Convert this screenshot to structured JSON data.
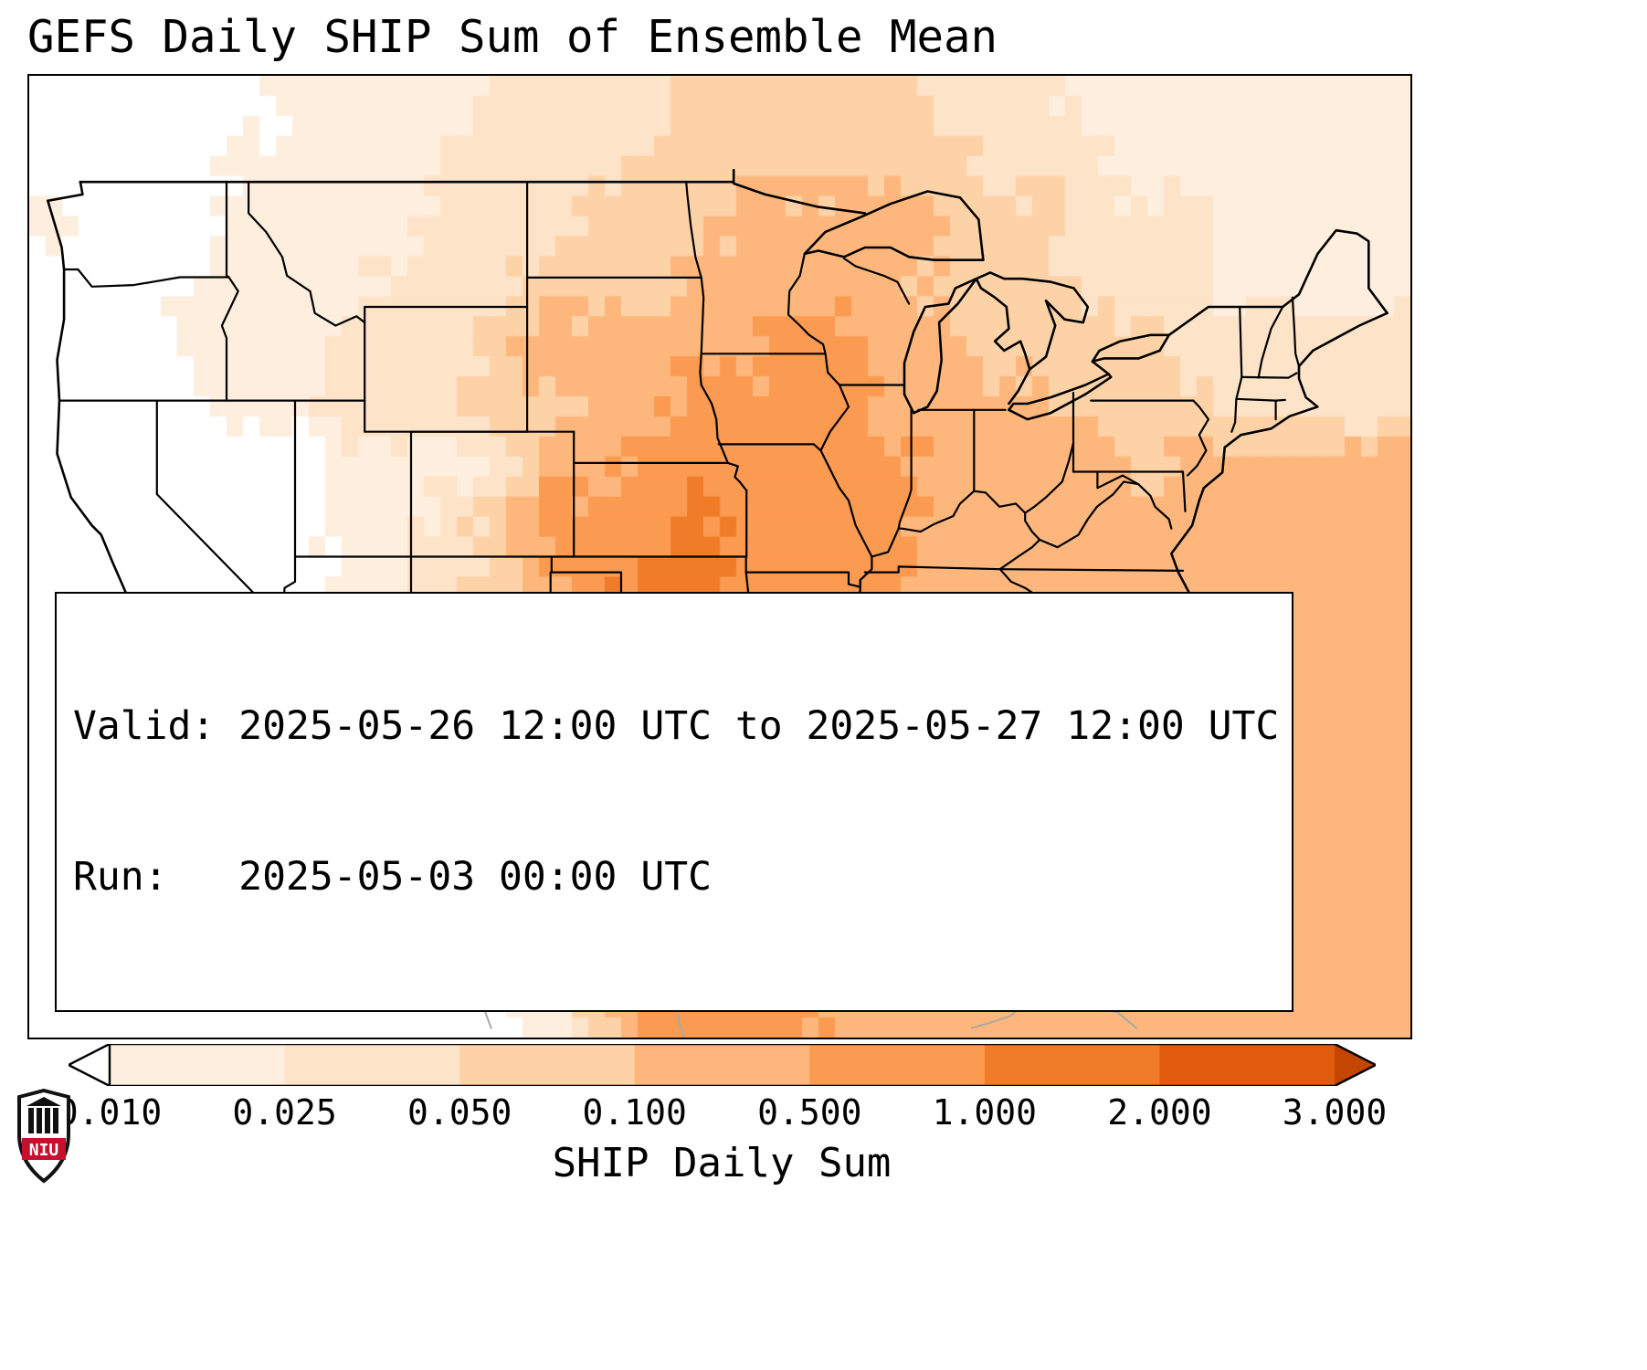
{
  "title": "GEFS Daily SHIP Sum of Ensemble Mean",
  "info_box": {
    "valid_line": "Valid: 2025-05-26 12:00 UTC to 2025-05-27 12:00 UTC",
    "run_line": "Run:   2025-05-03 00:00 UTC"
  },
  "colorbar": {
    "label": "SHIP Daily Sum",
    "tick_labels": [
      "0.010",
      "0.025",
      "0.050",
      "0.100",
      "0.500",
      "1.000",
      "2.000",
      "3.000"
    ],
    "segment_colors": [
      "#feeedd",
      "#fde3c8",
      "#fdd2a7",
      "#fdb77c",
      "#fb9a51",
      "#f07c27",
      "#e05c0c"
    ],
    "under_arrow_color": "#ffffff",
    "over_arrow_color": "#c44601",
    "outline_color": "#000000"
  },
  "logo": {
    "text": "NIU",
    "red": "#c8102e",
    "dark": "#111111"
  },
  "chart_data": {
    "type": "heatmap",
    "title": "GEFS Daily SHIP Sum of Ensemble Mean",
    "units_label": "SHIP Daily Sum",
    "valid": "2025-05-26 12:00 UTC to 2025-05-27 12:00 UTC",
    "run": "2025-05-03 00:00 UTC",
    "levels": [
      0.01,
      0.025,
      0.05,
      0.1,
      0.5,
      1.0,
      2.0,
      3.0
    ],
    "colors": [
      "#ffffff",
      "#feeedd",
      "#fde3c8",
      "#fdd2a7",
      "#fdb77c",
      "#fb9a51",
      "#f07c27",
      "#e05c0c",
      "#c44601"
    ],
    "lon_extent": [
      -125.5,
      -66.0
    ],
    "lat_extent": [
      21.6,
      52.4
    ],
    "grid_note": "values are approximate SHIP daily-sum ensemble means on a coarse lon/lat grid, rows north-to-south",
    "values": [
      [
        0,
        0,
        0,
        0,
        0,
        0.02,
        0.02,
        0.02,
        0.02,
        0.04,
        0.04,
        0.04,
        0.04,
        0.08,
        0.08,
        0.08,
        0.08,
        0.08,
        0.04,
        0.04,
        0.04,
        0.02,
        0.02,
        0.02,
        0.02,
        0.02,
        0.02,
        0.02
      ],
      [
        0,
        0,
        0,
        0,
        0.02,
        0.02,
        0.02,
        0.02,
        0.04,
        0.04,
        0.04,
        0.04,
        0.08,
        0.08,
        0.08,
        0.08,
        0.08,
        0.08,
        0.08,
        0.04,
        0.04,
        0.04,
        0.02,
        0.02,
        0.02,
        0.02,
        0.02,
        0.02
      ],
      [
        0.02,
        0,
        0,
        0,
        0.02,
        0.02,
        0.02,
        0.02,
        0.04,
        0.04,
        0.04,
        0.08,
        0.08,
        0.08,
        0.3,
        0.3,
        0.3,
        0.3,
        0.3,
        0.08,
        0.08,
        0.04,
        0.04,
        0.04,
        0.02,
        0.02,
        0.02,
        0.02
      ],
      [
        0,
        0,
        0,
        0.02,
        0.02,
        0.02,
        0.02,
        0.04,
        0.04,
        0.04,
        0.08,
        0.08,
        0.08,
        0.3,
        0.3,
        0.3,
        0.3,
        0.3,
        0.08,
        0.08,
        0.08,
        0.04,
        0.04,
        0.04,
        0.02,
        0.02,
        0.02,
        0.02
      ],
      [
        0,
        0,
        0,
        0.02,
        0.02,
        0.02,
        0.04,
        0.04,
        0.04,
        0.08,
        0.3,
        0.3,
        0.3,
        0.3,
        0.3,
        0.7,
        0.7,
        0.3,
        0.3,
        0.08,
        0.08,
        0.08,
        0.08,
        0.04,
        0.04,
        0.04,
        0.04,
        0.04
      ],
      [
        0,
        0,
        0,
        0,
        0.02,
        0.02,
        0.04,
        0.04,
        0.04,
        0.08,
        0.08,
        0.3,
        0.3,
        0.7,
        0.7,
        0.7,
        0.7,
        0.3,
        0.3,
        0.3,
        0.3,
        0.08,
        0.08,
        0.08,
        0.04,
        0.04,
        0.04,
        0.04
      ],
      [
        0,
        0,
        0,
        0,
        0,
        0,
        0.02,
        0.02,
        0.02,
        0.04,
        0.3,
        0.3,
        0.7,
        0.7,
        0.7,
        0.7,
        0.7,
        0.7,
        0.3,
        0.3,
        0.3,
        0.3,
        0.08,
        0.3,
        0.3,
        0.3,
        0.3,
        0.3
      ],
      [
        0,
        0,
        0,
        0,
        0,
        0,
        0.02,
        0.02,
        0.04,
        0.08,
        0.7,
        0.7,
        0.7,
        1.5,
        0.7,
        0.7,
        0.7,
        0.7,
        0.3,
        0.3,
        0.3,
        0.3,
        0.3,
        0.3,
        0.3,
        0.3,
        0.3,
        0.3
      ],
      [
        0,
        0,
        0,
        0,
        0,
        0,
        0.02,
        0.02,
        0.04,
        0.08,
        0.3,
        0.7,
        1.5,
        1.5,
        0.7,
        0.7,
        0.7,
        0.7,
        0.3,
        0.3,
        0.3,
        0.3,
        0.3,
        0.3,
        0.3,
        0.3,
        0.3,
        0.3
      ],
      [
        0,
        0,
        0,
        0,
        0,
        0.02,
        0.02,
        0.02,
        0.04,
        0.08,
        0.3,
        1.5,
        2.5,
        1.5,
        0.7,
        0.7,
        0.7,
        0.7,
        0.3,
        0.3,
        0.3,
        0.3,
        0.3,
        0.3,
        0.3,
        0.3,
        0.3,
        0.3
      ],
      [
        0,
        0,
        0,
        0,
        0,
        0,
        0.02,
        0.02,
        0.02,
        0.04,
        0.08,
        0.7,
        1.5,
        0.7,
        0.7,
        0.3,
        0.3,
        0.3,
        0.3,
        0.3,
        0.3,
        0.3,
        0.3,
        0.3,
        0.3,
        0.3,
        0.3,
        0.3
      ],
      [
        0,
        0,
        0,
        0,
        0,
        0,
        0,
        0.02,
        0.02,
        0.04,
        0.08,
        0.3,
        1.5,
        1.5,
        0.7,
        0.3,
        0.3,
        0.3,
        0.3,
        0.08,
        0.3,
        0.3,
        0.3,
        0.3,
        0.3,
        0.3,
        0.3,
        0.3
      ],
      [
        0,
        0,
        0,
        0,
        0,
        0,
        0,
        0,
        0.02,
        0.02,
        0.04,
        0.3,
        1.5,
        0.7,
        0.7,
        0.3,
        0.3,
        0.3,
        0.3,
        0.08,
        0.3,
        0.3,
        0.3,
        0.3,
        0.3,
        0.3,
        0.3,
        0.3
      ],
      [
        0,
        0,
        0,
        0.02,
        0,
        0,
        0,
        0,
        0,
        0.02,
        0.04,
        0.3,
        0.7,
        0.7,
        0.3,
        0.3,
        0.3,
        0.3,
        0.3,
        0.3,
        0.3,
        0.3,
        0.3,
        0.3,
        0.3,
        0.3,
        0.3,
        0.3
      ],
      [
        0,
        0,
        0,
        0,
        0.02,
        0,
        0,
        0,
        0,
        0,
        0.02,
        0.08,
        0.3,
        0.3,
        0.3,
        0.3,
        0.3,
        0.3,
        0.3,
        0.3,
        0.3,
        0.3,
        0.3,
        0.3,
        0.3,
        0.3,
        0.3,
        0.3
      ],
      [
        0,
        0,
        0,
        0,
        0,
        0,
        0,
        0,
        0,
        0,
        0.02,
        0.08,
        0.7,
        0.7,
        0.7,
        0.7,
        0.3,
        0.3,
        0.3,
        0.3,
        0.3,
        0.3,
        0.3,
        0.3,
        0.3,
        0.3,
        0.3,
        0.3
      ]
    ]
  }
}
